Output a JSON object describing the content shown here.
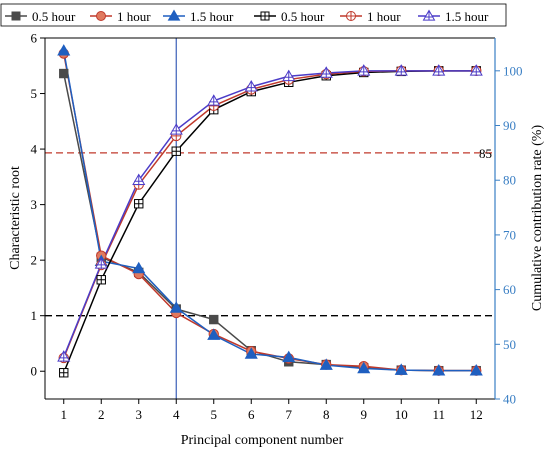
{
  "chart_data": {
    "type": "line",
    "xlabel": "Principal component number",
    "ylabel_left": "Characteristic root",
    "ylabel_right": "Cumulative contribution rate (%)",
    "x": [
      1,
      2,
      3,
      4,
      5,
      6,
      7,
      8,
      9,
      10,
      11,
      12
    ],
    "xticks": [
      "1",
      "2",
      "3",
      "4",
      "5",
      "6",
      "7",
      "8",
      "9",
      "10",
      "11",
      "12"
    ],
    "xlim": [
      0.5,
      12.5
    ],
    "ylim_left": [
      -0.5,
      6
    ],
    "yticks_left": [
      "0",
      "1",
      "2",
      "3",
      "4",
      "5",
      "6"
    ],
    "ylim_right": [
      40,
      106
    ],
    "yticks_right": [
      "40",
      "50",
      "60",
      "70",
      "80",
      "90",
      "100"
    ],
    "grid": false,
    "legend_position": "top",
    "vertical_line": {
      "x": 4,
      "color": "#3a5fb8"
    },
    "reference_lines": [
      {
        "axis": "left",
        "y": 1,
        "color": "#000000",
        "style": "dashed"
      },
      {
        "axis": "right",
        "y": 85,
        "color": "#c0392b",
        "style": "dashed",
        "label": "85"
      }
    ],
    "series": [
      {
        "name": "0.5 hour",
        "axis": "left",
        "marker": "filled-square",
        "color": "#4a4a4a",
        "values": [
          5.36,
          2.05,
          1.78,
          1.12,
          0.93,
          0.37,
          0.17,
          0.12,
          0.06,
          0.02,
          0.01,
          0.01
        ]
      },
      {
        "name": "1 hour",
        "axis": "left",
        "marker": "filled-circle",
        "color": "#c0392b",
        "fill": "#e07a5f",
        "values": [
          5.72,
          2.08,
          1.75,
          1.05,
          0.67,
          0.36,
          0.23,
          0.12,
          0.09,
          0.02,
          0.01,
          0.01
        ]
      },
      {
        "name": "1.5 hour",
        "axis": "left",
        "marker": "filled-triangle",
        "color": "#1f5fc0",
        "values": [
          5.77,
          1.98,
          1.85,
          1.14,
          0.65,
          0.31,
          0.25,
          0.11,
          0.05,
          0.02,
          0.01,
          0.01
        ]
      },
      {
        "name": "0.5 hour",
        "axis": "right",
        "marker": "open-square-plus",
        "color": "#000000",
        "values": [
          44.8,
          61.8,
          75.7,
          85.3,
          92.9,
          96.2,
          97.9,
          99.1,
          99.7,
          99.9,
          100,
          100
        ]
      },
      {
        "name": "1 hour",
        "axis": "right",
        "marker": "open-circle-plus",
        "color": "#c0392b",
        "values": [
          47.5,
          64.5,
          79.2,
          88.1,
          93.6,
          96.6,
          98.4,
          99.4,
          99.9,
          100,
          100,
          100
        ]
      },
      {
        "name": "1.5 hour",
        "axis": "right",
        "marker": "open-triangle-plus",
        "color": "#4b3cc8",
        "values": [
          47.7,
          64.7,
          80.0,
          89.2,
          94.5,
          97.1,
          99.0,
          99.6,
          100,
          100,
          100,
          100
        ]
      }
    ]
  }
}
